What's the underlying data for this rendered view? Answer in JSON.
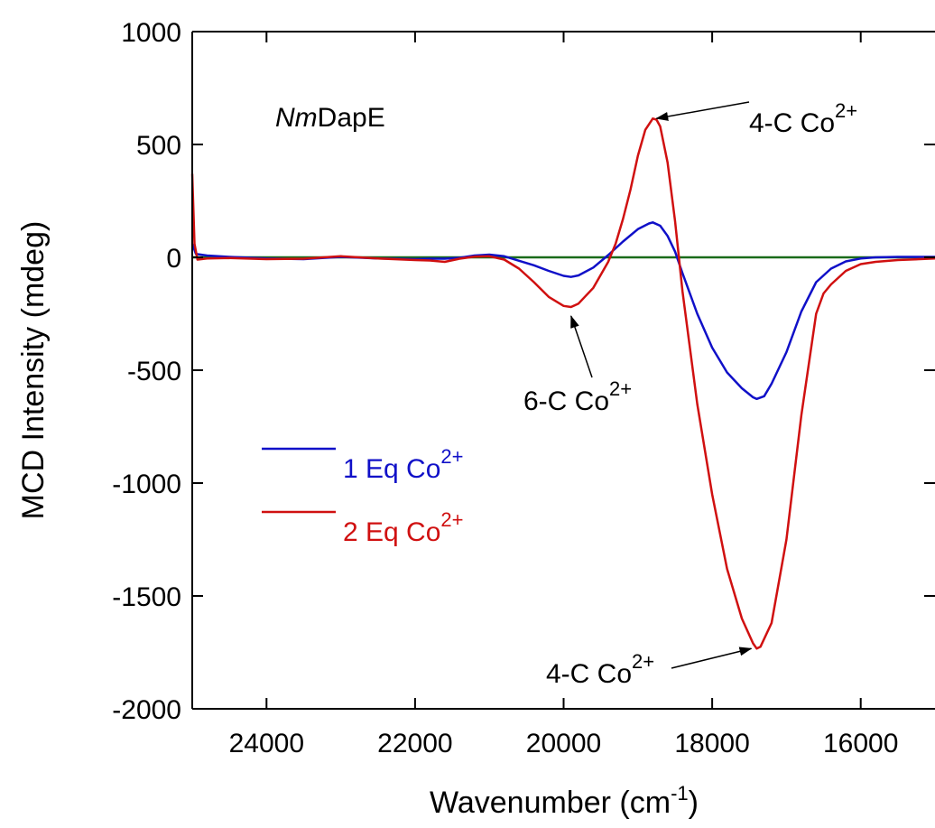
{
  "chart_data": {
    "type": "line",
    "sample_name": {
      "italic": "Nm",
      "rest": "DapE"
    },
    "xlabel": {
      "text": "Wavenumber (cm",
      "sup": "-1",
      "close": ")"
    },
    "ylabel": "MCD Intensity (mdeg)",
    "xlim": [
      25000,
      15000
    ],
    "ylim": [
      -2000,
      1000
    ],
    "x_reversed": true,
    "x_ticks": [
      24000,
      22000,
      20000,
      18000,
      16000
    ],
    "y_ticks": [
      1000,
      500,
      0,
      -500,
      -1000,
      -1500,
      -2000
    ],
    "grid": false,
    "legend_position": "center-left",
    "baseline": {
      "y": 0,
      "color": "#1a6b1a"
    },
    "series": [
      {
        "name": "1 Eq Co",
        "name_sup": "2+",
        "color": "#1010c8",
        "points": [
          [
            25000,
            60
          ],
          [
            24950,
            15
          ],
          [
            24800,
            8
          ],
          [
            24500,
            2
          ],
          [
            24000,
            -5
          ],
          [
            23500,
            -8
          ],
          [
            23000,
            2
          ],
          [
            22500,
            -5
          ],
          [
            22000,
            -8
          ],
          [
            21800,
            -6
          ],
          [
            21600,
            -6
          ],
          [
            21400,
            -2
          ],
          [
            21200,
            8
          ],
          [
            21000,
            12
          ],
          [
            20800,
            5
          ],
          [
            20600,
            -15
          ],
          [
            20400,
            -35
          ],
          [
            20200,
            -60
          ],
          [
            20000,
            -82
          ],
          [
            19900,
            -87
          ],
          [
            19800,
            -80
          ],
          [
            19600,
            -45
          ],
          [
            19400,
            10
          ],
          [
            19200,
            70
          ],
          [
            19000,
            125
          ],
          [
            18850,
            150
          ],
          [
            18800,
            155
          ],
          [
            18700,
            140
          ],
          [
            18600,
            95
          ],
          [
            18500,
            25
          ],
          [
            18400,
            -70
          ],
          [
            18300,
            -160
          ],
          [
            18200,
            -250
          ],
          [
            18000,
            -400
          ],
          [
            17800,
            -510
          ],
          [
            17600,
            -580
          ],
          [
            17450,
            -620
          ],
          [
            17400,
            -627
          ],
          [
            17300,
            -615
          ],
          [
            17200,
            -560
          ],
          [
            17000,
            -420
          ],
          [
            16800,
            -240
          ],
          [
            16600,
            -110
          ],
          [
            16400,
            -50
          ],
          [
            16200,
            -18
          ],
          [
            16000,
            -5
          ],
          [
            15800,
            0
          ],
          [
            15500,
            2
          ],
          [
            15000,
            2
          ]
        ]
      },
      {
        "name": "2 Eq Co",
        "name_sup": "2+",
        "color": "#d01010",
        "points": [
          [
            25000,
            370
          ],
          [
            24970,
            60
          ],
          [
            24930,
            -10
          ],
          [
            24800,
            -5
          ],
          [
            24500,
            -3
          ],
          [
            24000,
            -8
          ],
          [
            23500,
            -6
          ],
          [
            23000,
            5
          ],
          [
            22500,
            -5
          ],
          [
            22000,
            -12
          ],
          [
            21800,
            -14
          ],
          [
            21600,
            -20
          ],
          [
            21400,
            -6
          ],
          [
            21200,
            3
          ],
          [
            21000,
            5
          ],
          [
            20800,
            -10
          ],
          [
            20600,
            -50
          ],
          [
            20400,
            -110
          ],
          [
            20200,
            -175
          ],
          [
            20000,
            -215
          ],
          [
            19900,
            -220
          ],
          [
            19800,
            -205
          ],
          [
            19600,
            -135
          ],
          [
            19400,
            -20
          ],
          [
            19300,
            60
          ],
          [
            19200,
            170
          ],
          [
            19100,
            300
          ],
          [
            19000,
            450
          ],
          [
            18900,
            565
          ],
          [
            18800,
            615
          ],
          [
            18750,
            610
          ],
          [
            18700,
            580
          ],
          [
            18600,
            420
          ],
          [
            18500,
            160
          ],
          [
            18400,
            -150
          ],
          [
            18300,
            -400
          ],
          [
            18200,
            -650
          ],
          [
            18000,
            -1050
          ],
          [
            17800,
            -1380
          ],
          [
            17600,
            -1600
          ],
          [
            17450,
            -1710
          ],
          [
            17400,
            -1733
          ],
          [
            17350,
            -1725
          ],
          [
            17200,
            -1620
          ],
          [
            17000,
            -1250
          ],
          [
            16800,
            -700
          ],
          [
            16600,
            -250
          ],
          [
            16500,
            -160
          ],
          [
            16400,
            -120
          ],
          [
            16200,
            -60
          ],
          [
            16000,
            -30
          ],
          [
            15800,
            -20
          ],
          [
            15500,
            -12
          ],
          [
            15000,
            -5
          ]
        ]
      }
    ],
    "annotations": [
      {
        "text": "4-C Co",
        "sup": "2+",
        "target": [
          18800,
          615
        ],
        "label_at": [
          17800,
          690
        ]
      },
      {
        "text": "6-C Co",
        "sup": "2+",
        "target": [
          19900,
          -220
        ],
        "label_at": [
          19480,
          -600
        ]
      },
      {
        "text": "4-C Co",
        "sup": "2+",
        "target": [
          17400,
          -1733
        ],
        "label_at": [
          18500,
          -1830
        ]
      }
    ]
  }
}
